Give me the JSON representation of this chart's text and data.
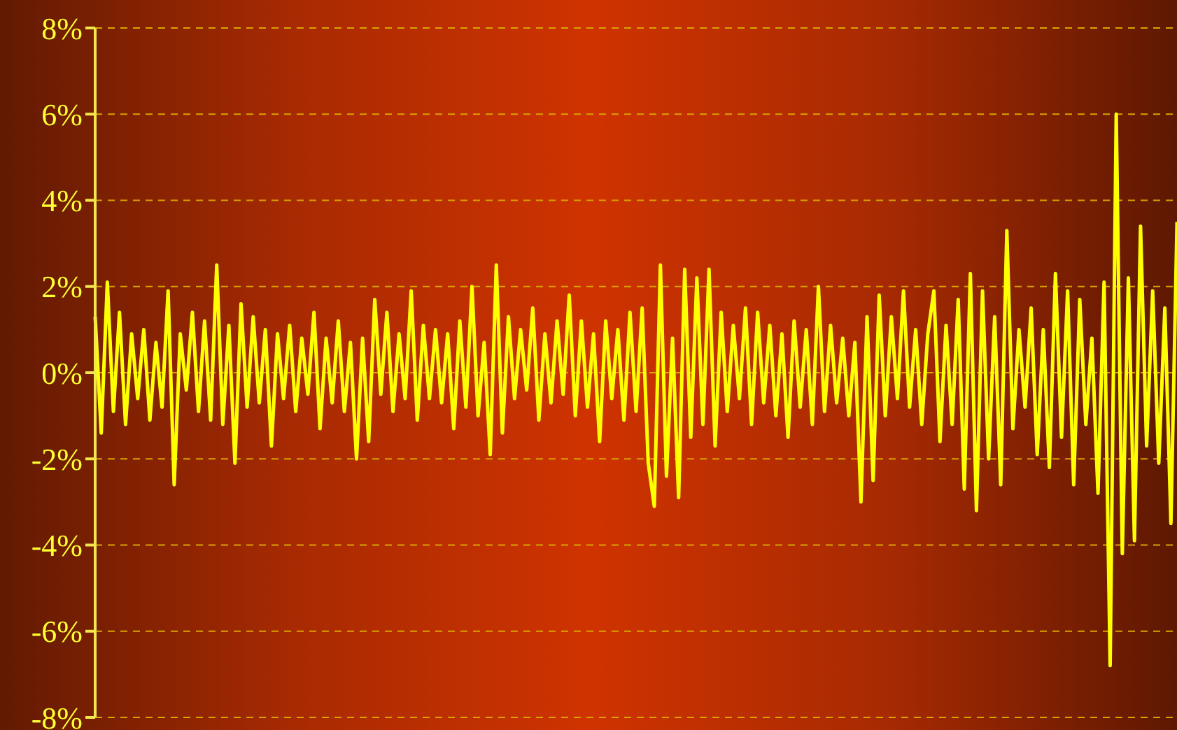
{
  "chart_data": {
    "type": "line",
    "categories": [
      null,
      null,
      null,
      null,
      null,
      null,
      null,
      null,
      null,
      null,
      null,
      null,
      null,
      null,
      null,
      null,
      null,
      null,
      null,
      null,
      null,
      null,
      null,
      null,
      null,
      null,
      null,
      null,
      null,
      null,
      null,
      null,
      null,
      null,
      null,
      null,
      null,
      null,
      null,
      null,
      null,
      null,
      null,
      null,
      null,
      null,
      null,
      null,
      null,
      null,
      null,
      null,
      null,
      null,
      null,
      null,
      null,
      null,
      null,
      null,
      null,
      null,
      null,
      null,
      null,
      null,
      null,
      null,
      null,
      null,
      null,
      null,
      null,
      null,
      null,
      null,
      null,
      null,
      null,
      null,
      null,
      null,
      null,
      null,
      null,
      null,
      null,
      null,
      null,
      null,
      null,
      null,
      null,
      null,
      null,
      null,
      null,
      null,
      null,
      null,
      null,
      null,
      null,
      null,
      null,
      null,
      null,
      null,
      null,
      null,
      null,
      null,
      null,
      null,
      null,
      null,
      null,
      null,
      null,
      null,
      null,
      null,
      null,
      null,
      null,
      null,
      null,
      null,
      null,
      null,
      null,
      null,
      null,
      null,
      null,
      null,
      null,
      null,
      null,
      null,
      null,
      null,
      null,
      null,
      null,
      null,
      null,
      null,
      null,
      null,
      null,
      null,
      null,
      null,
      null,
      null,
      null,
      null,
      null,
      null,
      null,
      null,
      null,
      null,
      null,
      null,
      null,
      null,
      null,
      null,
      null,
      null,
      null,
      null,
      null,
      null,
      null,
      null,
      null
    ],
    "series": [
      {
        "color": "#ffff00",
        "values": [
          1.3,
          -1.4,
          2.1,
          -0.9,
          1.4,
          -1.2,
          0.9,
          -0.6,
          1.0,
          -1.1,
          0.7,
          -0.8,
          1.9,
          -2.6,
          0.9,
          -0.4,
          1.4,
          -0.9,
          1.2,
          -1.1,
          2.5,
          -1.2,
          1.1,
          -2.1,
          1.6,
          -0.8,
          1.3,
          -0.7,
          1.0,
          -1.7,
          0.9,
          -0.6,
          1.1,
          -0.9,
          0.8,
          -0.5,
          1.4,
          -1.3,
          0.8,
          -0.7,
          1.2,
          -0.9,
          0.7,
          -2.0,
          0.8,
          -1.6,
          1.7,
          -0.5,
          1.4,
          -0.9,
          0.9,
          -0.6,
          1.9,
          -1.1,
          1.1,
          -0.6,
          1.0,
          -0.7,
          0.9,
          -1.3,
          1.2,
          -0.8,
          2.0,
          -1.0,
          0.7,
          -1.9,
          2.5,
          -1.4,
          1.3,
          -0.6,
          1.0,
          -0.4,
          1.5,
          -1.1,
          0.9,
          -0.7,
          1.2,
          -0.5,
          1.8,
          -1.0,
          1.2,
          -0.8,
          0.9,
          -1.6,
          1.2,
          -0.6,
          1.0,
          -1.1,
          1.4,
          -0.9,
          1.5,
          -2.1,
          -3.1,
          2.5,
          -2.4,
          0.8,
          -2.9,
          2.4,
          -1.5,
          2.2,
          -1.2,
          2.4,
          -1.7,
          1.4,
          -0.9,
          1.1,
          -0.6,
          1.5,
          -1.2,
          1.4,
          -0.7,
          1.1,
          -1.0,
          0.9,
          -1.5,
          1.2,
          -0.8,
          1.0,
          -1.2,
          2.0,
          -0.9,
          1.1,
          -0.7,
          0.8,
          -1.0,
          0.7,
          -3.0,
          1.3,
          -2.5,
          1.8,
          -1.0,
          1.3,
          -0.6,
          1.9,
          -0.8,
          1.0,
          -1.2,
          0.9,
          1.9,
          -1.6,
          1.1,
          -1.2,
          1.7,
          -2.7,
          2.3,
          -3.2,
          1.9,
          -2.0,
          1.3,
          -2.6,
          3.3,
          -1.3,
          1.0,
          -0.8,
          1.5,
          -1.9,
          1.0,
          -2.2,
          2.3,
          -1.5,
          1.9,
          -2.6,
          1.7,
          -1.2,
          0.8,
          -2.8,
          2.1,
          -6.8,
          6.0,
          -4.2,
          2.2,
          -3.9,
          3.4,
          -1.7,
          1.9,
          -2.1,
          1.5,
          -3.5,
          3.5
        ]
      }
    ],
    "ylim": [
      -8,
      8
    ],
    "yticks": [
      {
        "value": -8,
        "label": "-8%"
      },
      {
        "value": -6,
        "label": "-6%"
      },
      {
        "value": -4,
        "label": "-4%"
      },
      {
        "value": -2,
        "label": "-2%"
      },
      {
        "value": 0,
        "label": "0%"
      },
      {
        "value": 2,
        "label": "2%"
      },
      {
        "value": 4,
        "label": "4%"
      },
      {
        "value": 6,
        "label": "6%"
      },
      {
        "value": 8,
        "label": "8%"
      }
    ],
    "grid": "y",
    "tick_labels": "y",
    "marker": "none",
    "line_style": "solid"
  }
}
